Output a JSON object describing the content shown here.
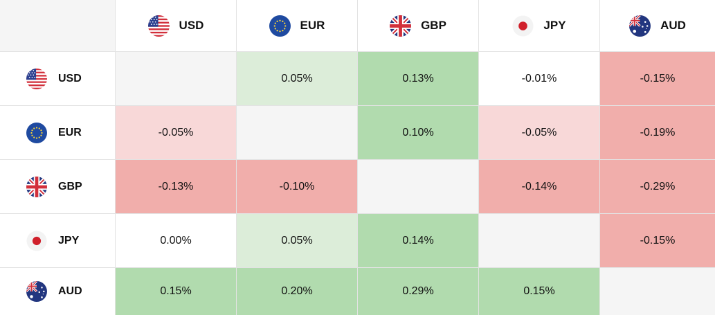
{
  "currencies": [
    {
      "code": "USD",
      "flag": "usa-flag-icon"
    },
    {
      "code": "EUR",
      "flag": "eu-flag-icon"
    },
    {
      "code": "GBP",
      "flag": "uk-flag-icon"
    },
    {
      "code": "JPY",
      "flag": "japan-flag-icon"
    },
    {
      "code": "AUD",
      "flag": "australia-flag-icon"
    }
  ],
  "matrix": [
    [
      null,
      "0.05%",
      "0.13%",
      "-0.01%",
      "-0.15%"
    ],
    [
      "-0.05%",
      null,
      "0.10%",
      "-0.05%",
      "-0.19%"
    ],
    [
      "-0.13%",
      "-0.10%",
      null,
      "-0.14%",
      "-0.29%"
    ],
    [
      "0.00%",
      "0.05%",
      "0.14%",
      null,
      "-0.15%"
    ],
    [
      "0.15%",
      "0.20%",
      "0.29%",
      "0.15%",
      null
    ]
  ],
  "colors": {
    "positive_strong": "#b1dbae",
    "positive_weak": "#dcedd9",
    "negative_strong": "#f1aeab",
    "negative_weak": "#f8d8d8",
    "neutral": "#ffffff",
    "diagonal": "#f5f5f5"
  }
}
